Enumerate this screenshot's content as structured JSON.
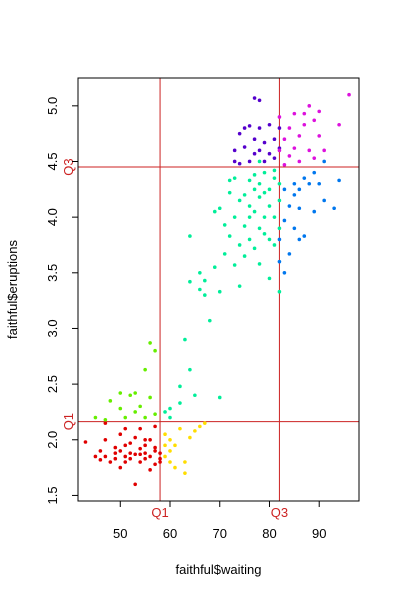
{
  "chart_data": {
    "type": "scatter",
    "title": "",
    "xlabel": "faithful$waiting",
    "ylabel": "faithful$eruptions",
    "xlim": [
      41.5,
      98
    ],
    "ylim": [
      1.45,
      5.25
    ],
    "xticks": [
      50,
      60,
      70,
      80,
      90
    ],
    "yticks": [
      1.5,
      2.0,
      2.5,
      3.0,
      3.5,
      4.0,
      4.5,
      5.0
    ],
    "xtick_labels": [
      "50",
      "60",
      "70",
      "80",
      "90"
    ],
    "ytick_labels": [
      "1.5",
      "2.0",
      "2.5",
      "3.0",
      "3.5",
      "4.0",
      "4.5",
      "5.0"
    ],
    "grid": false,
    "legend": "none",
    "reference_lines": {
      "color": "#cc2222",
      "x": [
        {
          "value": 58,
          "label": "Q1"
        },
        {
          "value": 82,
          "label": "Q3"
        }
      ],
      "y": [
        {
          "value": 2.163,
          "label": "Q1"
        },
        {
          "value": 4.45,
          "label": "Q3"
        }
      ]
    },
    "series": [
      {
        "color": "#e00000",
        "points": [
          [
            43,
            1.98
          ],
          [
            45,
            1.85
          ],
          [
            46,
            1.82
          ],
          [
            46,
            1.9
          ],
          [
            47,
            1.85
          ],
          [
            47,
            2.0
          ],
          [
            47,
            2.15
          ],
          [
            48,
            1.8
          ],
          [
            49,
            1.83
          ],
          [
            49,
            1.88
          ],
          [
            49,
            1.93
          ],
          [
            50,
            1.9
          ],
          [
            50,
            1.75
          ],
          [
            50,
            2.05
          ],
          [
            51,
            1.8
          ],
          [
            51,
            1.85
          ],
          [
            51,
            1.95
          ],
          [
            51,
            2.1
          ],
          [
            52,
            1.83
          ],
          [
            52,
            1.88
          ],
          [
            52,
            1.97
          ],
          [
            53,
            1.6
          ],
          [
            53,
            1.87
          ],
          [
            53,
            2.02
          ],
          [
            54,
            1.8
          ],
          [
            54,
            1.87
          ],
          [
            54,
            1.92
          ],
          [
            54,
            2.1
          ],
          [
            55,
            1.83
          ],
          [
            55,
            1.88
          ],
          [
            55,
            1.95
          ],
          [
            55,
            2.0
          ],
          [
            56,
            1.73
          ],
          [
            56,
            1.85
          ],
          [
            56,
            2.0
          ],
          [
            57,
            1.9
          ],
          [
            57,
            1.78
          ],
          [
            57,
            1.93
          ],
          [
            57,
            2.12
          ],
          [
            58,
            1.8
          ],
          [
            58,
            1.88
          ],
          [
            58,
            1.83
          ]
        ]
      },
      {
        "color": "#66ee00",
        "points": [
          [
            45,
            2.2
          ],
          [
            47,
            2.18
          ],
          [
            48,
            2.35
          ],
          [
            50,
            2.28
          ],
          [
            50,
            2.42
          ],
          [
            51,
            2.2
          ],
          [
            52,
            2.4
          ],
          [
            53,
            2.25
          ],
          [
            53,
            2.42
          ],
          [
            54,
            2.3
          ],
          [
            55,
            2.63
          ],
          [
            55,
            2.2
          ],
          [
            56,
            2.38
          ],
          [
            56,
            2.87
          ],
          [
            57,
            2.8
          ],
          [
            57,
            2.23
          ]
        ]
      },
      {
        "color": "#ffdd00",
        "points": [
          [
            59,
            2.05
          ],
          [
            59,
            1.95
          ],
          [
            59,
            1.85
          ],
          [
            60,
            2.0
          ],
          [
            60,
            1.9
          ],
          [
            60,
            1.8
          ],
          [
            61,
            1.75
          ],
          [
            61,
            1.95
          ],
          [
            62,
            2.1
          ],
          [
            63,
            1.8
          ],
          [
            63,
            1.7
          ],
          [
            64,
            2.02
          ],
          [
            65,
            2.08
          ],
          [
            66,
            2.12
          ],
          [
            67,
            2.15
          ]
        ]
      },
      {
        "color": "#00ee99",
        "points": [
          [
            59,
            2.25
          ],
          [
            60,
            2.2
          ],
          [
            60,
            2.28
          ],
          [
            62,
            2.33
          ],
          [
            62,
            2.48
          ],
          [
            63,
            2.9
          ],
          [
            64,
            2.63
          ],
          [
            64,
            3.42
          ],
          [
            64,
            3.83
          ],
          [
            65,
            2.4
          ],
          [
            66,
            3.5
          ],
          [
            66,
            3.35
          ],
          [
            67,
            3.43
          ],
          [
            67,
            3.3
          ],
          [
            68,
            3.07
          ],
          [
            69,
            4.05
          ],
          [
            69,
            3.55
          ],
          [
            70,
            3.33
          ],
          [
            70,
            4.08
          ],
          [
            70,
            2.38
          ],
          [
            71,
            3.67
          ],
          [
            71,
            3.93
          ],
          [
            72,
            4.33
          ],
          [
            72,
            4.22
          ],
          [
            72,
            3.83
          ],
          [
            73,
            3.57
          ],
          [
            73,
            4.0
          ],
          [
            73,
            4.35
          ],
          [
            74,
            3.75
          ],
          [
            74,
            4.15
          ],
          [
            74,
            3.38
          ],
          [
            75,
            3.92
          ],
          [
            75,
            4.2
          ],
          [
            75,
            3.65
          ],
          [
            76,
            4.33
          ],
          [
            76,
            4.1
          ],
          [
            76,
            3.8
          ],
          [
            76,
            4.0
          ],
          [
            77,
            4.38
          ],
          [
            77,
            3.72
          ],
          [
            77,
            4.25
          ],
          [
            77,
            4.05
          ],
          [
            78,
            3.9
          ],
          [
            78,
            4.18
          ],
          [
            78,
            4.5
          ],
          [
            78,
            3.58
          ],
          [
            78,
            4.3
          ],
          [
            79,
            4.0
          ],
          [
            79,
            3.85
          ],
          [
            79,
            4.22
          ],
          [
            79,
            4.4
          ],
          [
            80,
            4.1
          ],
          [
            80,
            3.8
          ],
          [
            80,
            4.25
          ],
          [
            80,
            3.45
          ],
          [
            81,
            4.35
          ],
          [
            81,
            4.0
          ],
          [
            81,
            4.42
          ],
          [
            81,
            3.75
          ],
          [
            82,
            3.33
          ],
          [
            82,
            3.9
          ],
          [
            82,
            4.15
          ],
          [
            82,
            4.3
          ]
        ]
      },
      {
        "color": "#0077ee",
        "points": [
          [
            82,
            3.6
          ],
          [
            82,
            3.8
          ],
          [
            83,
            3.97
          ],
          [
            83,
            4.25
          ],
          [
            83,
            3.5
          ],
          [
            84,
            4.1
          ],
          [
            84,
            3.67
          ],
          [
            85,
            4.3
          ],
          [
            85,
            3.9
          ],
          [
            85,
            4.2
          ],
          [
            86,
            3.8
          ],
          [
            86,
            4.08
          ],
          [
            86,
            4.25
          ],
          [
            87,
            4.35
          ],
          [
            87,
            3.83
          ],
          [
            88,
            4.3
          ],
          [
            89,
            4.05
          ],
          [
            89,
            4.4
          ],
          [
            90,
            4.3
          ],
          [
            91,
            4.15
          ],
          [
            91,
            4.5
          ],
          [
            93,
            4.08
          ],
          [
            94,
            4.33
          ]
        ]
      },
      {
        "color": "#5500cc",
        "points": [
          [
            73,
            4.6
          ],
          [
            73,
            4.5
          ],
          [
            74,
            4.75
          ],
          [
            74,
            4.48
          ],
          [
            75,
            4.8
          ],
          [
            75,
            4.63
          ],
          [
            76,
            4.5
          ],
          [
            76,
            4.82
          ],
          [
            77,
            4.57
          ],
          [
            77,
            4.7
          ],
          [
            77,
            5.07
          ],
          [
            78,
            4.8
          ],
          [
            78,
            4.6
          ],
          [
            78,
            5.05
          ],
          [
            79,
            4.5
          ],
          [
            79,
            4.67
          ],
          [
            80,
            4.83
          ],
          [
            80,
            4.57
          ],
          [
            81,
            4.7
          ],
          [
            81,
            4.53
          ],
          [
            82,
            4.62
          ],
          [
            82,
            4.8
          ]
        ]
      },
      {
        "color": "#dd11dd",
        "points": [
          [
            82,
            4.9
          ],
          [
            82,
            4.6
          ],
          [
            83,
            4.47
          ],
          [
            83,
            4.7
          ],
          [
            84,
            4.8
          ],
          [
            84,
            4.55
          ],
          [
            85,
            4.93
          ],
          [
            85,
            4.62
          ],
          [
            86,
            4.73
          ],
          [
            86,
            4.5
          ],
          [
            87,
            4.83
          ],
          [
            87,
            4.93
          ],
          [
            88,
            4.6
          ],
          [
            88,
            5.0
          ],
          [
            89,
            4.87
          ],
          [
            89,
            4.53
          ],
          [
            90,
            4.73
          ],
          [
            90,
            4.95
          ],
          [
            91,
            4.6
          ],
          [
            94,
            4.83
          ],
          [
            96,
            5.1
          ]
        ]
      }
    ]
  }
}
